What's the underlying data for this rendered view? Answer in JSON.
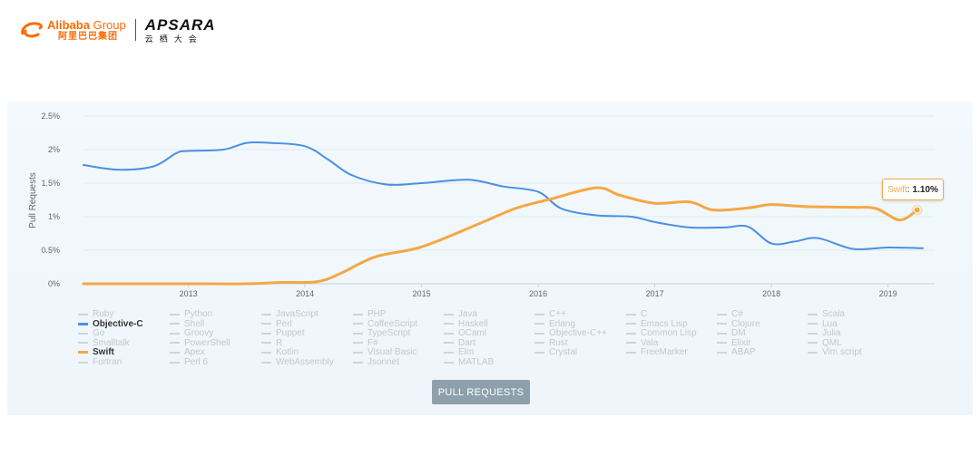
{
  "brand": {
    "alibaba_en": "Alibaba",
    "alibaba_group": "Group",
    "alibaba_cn": "阿里巴巴集团",
    "apsara_name": "APSARA",
    "apsara_cn": "云栖大会",
    "alibaba_color": "#ff6a00"
  },
  "button": {
    "label": "PULL REQUESTS"
  },
  "tooltip": {
    "series": "Swift",
    "value": "1.10%"
  },
  "chart_data": {
    "type": "line",
    "title": "",
    "ylabel": "Pull Requests",
    "xlabel": "",
    "x_ticks": [
      "2013",
      "2014",
      "2015",
      "2016",
      "2017",
      "2018",
      "2019"
    ],
    "y_ticks": [
      "2.5%",
      "2%",
      "1.5%",
      "1%",
      "0.5%",
      "0%"
    ],
    "ylim": [
      0,
      2.5
    ],
    "xlim": [
      2012.1,
      2019.4
    ],
    "grid": true,
    "series": [
      {
        "name": "Objective-C",
        "color": "#4a90e2",
        "x": [
          2012.1,
          2012.4,
          2012.7,
          2012.9,
          2013.0,
          2013.3,
          2013.5,
          2013.7,
          2014.0,
          2014.2,
          2014.4,
          2014.7,
          2015.0,
          2015.4,
          2015.7,
          2016.0,
          2016.2,
          2016.5,
          2016.8,
          2017.0,
          2017.3,
          2017.6,
          2017.8,
          2018.0,
          2018.2,
          2018.4,
          2018.7,
          2019.0,
          2019.3
        ],
        "values": [
          1.77,
          1.7,
          1.75,
          1.95,
          1.98,
          2.0,
          2.1,
          2.1,
          2.05,
          1.85,
          1.62,
          1.48,
          1.5,
          1.55,
          1.45,
          1.37,
          1.12,
          1.02,
          1.0,
          0.92,
          0.84,
          0.84,
          0.85,
          0.6,
          0.63,
          0.68,
          0.52,
          0.54,
          0.53
        ]
      },
      {
        "name": "Swift",
        "color": "#f5a744",
        "x": [
          2012.1,
          2012.5,
          2013.0,
          2013.5,
          2013.8,
          2014.1,
          2014.3,
          2014.6,
          2015.0,
          2015.5,
          2015.8,
          2016.1,
          2016.5,
          2016.7,
          2017.0,
          2017.3,
          2017.5,
          2017.8,
          2018.0,
          2018.3,
          2018.7,
          2018.9,
          2019.1,
          2019.25
        ],
        "values": [
          0,
          0,
          0,
          0,
          0.02,
          0.03,
          0.15,
          0.4,
          0.55,
          0.9,
          1.12,
          1.26,
          1.43,
          1.32,
          1.2,
          1.22,
          1.1,
          1.13,
          1.18,
          1.15,
          1.14,
          1.12,
          0.95,
          1.1
        ]
      }
    ],
    "legend": {
      "placement": "bottom",
      "items": [
        [
          "Ruby",
          "Objective-C",
          "Go",
          "Smalltalk",
          "Swift",
          "Fortran"
        ],
        [
          "Python",
          "Shell",
          "Groovy",
          "PowerShell",
          "Apex",
          "Perl 6"
        ],
        [
          "JavaScript",
          "Perl",
          "Puppet",
          "R",
          "Kotlin",
          "WebAssembly"
        ],
        [
          "PHP",
          "CoffeeScript",
          "TypeScript",
          "F#",
          "Visual Basic",
          "Jsonnet"
        ],
        [
          "Java",
          "Haskell",
          "OCaml",
          "Dart",
          "Elm",
          "MATLAB"
        ],
        [
          "C++",
          "Erlang",
          "Objective-C++",
          "Rust",
          "Crystal"
        ],
        [
          "C",
          "Emacs Lisp",
          "Common Lisp",
          "Vala",
          "FreeMarker"
        ],
        [
          "C#",
          "Clojure",
          "DM",
          "Elixir",
          "ABAP"
        ],
        [
          "Scala",
          "Lua",
          "Julia",
          "QML",
          "Vim script"
        ]
      ],
      "active": [
        "Objective-C",
        "Swift"
      ]
    }
  }
}
